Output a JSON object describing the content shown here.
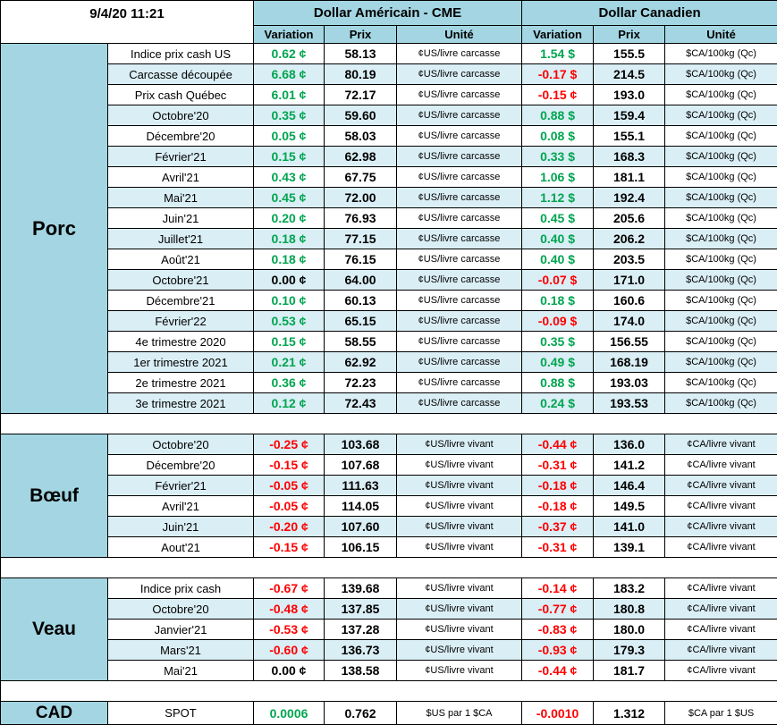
{
  "header": {
    "timestamp": "9/4/20 11:21",
    "us_group_title": "Dollar Américain - CME",
    "ca_group_title": "Dollar Canadien",
    "columns": [
      "Variation",
      "Prix",
      "Unité"
    ]
  },
  "colors": {
    "header_blue": "#a3d6e2",
    "alt_row_blue": "#daeef5",
    "positive_green": "#00a550",
    "negative_red": "#ff0000",
    "border_black": "#000000"
  },
  "sections": [
    {
      "name": "Porc",
      "us_unit": "¢US/livre carcasse",
      "ca_unit": "$CA/100kg (Qc)",
      "rows": [
        {
          "label": "Indice prix cash US",
          "us_var": "0.62 ¢",
          "us_prix": "58.13",
          "ca_var": "1.54 $",
          "ca_prix": "155.5"
        },
        {
          "label": "Carcasse découpée",
          "us_var": "6.68 ¢",
          "us_prix": "80.19",
          "ca_var": "-0.17 $",
          "ca_prix": "214.5"
        },
        {
          "label": "Prix cash Québec",
          "us_var": "6.01 ¢",
          "us_prix": "72.17",
          "ca_var": "-0.15 ¢",
          "ca_prix": "193.0"
        },
        {
          "label": "Octobre'20",
          "us_var": "0.35 ¢",
          "us_prix": "59.60",
          "ca_var": "0.88 $",
          "ca_prix": "159.4"
        },
        {
          "label": "Décembre'20",
          "us_var": "0.05 ¢",
          "us_prix": "58.03",
          "ca_var": "0.08 $",
          "ca_prix": "155.1"
        },
        {
          "label": "Février'21",
          "us_var": "0.15 ¢",
          "us_prix": "62.98",
          "ca_var": "0.33 $",
          "ca_prix": "168.3"
        },
        {
          "label": "Avril'21",
          "us_var": "0.43 ¢",
          "us_prix": "67.75",
          "ca_var": "1.06 $",
          "ca_prix": "181.1"
        },
        {
          "label": "Mai'21",
          "us_var": "0.45 ¢",
          "us_prix": "72.00",
          "ca_var": "1.12 $",
          "ca_prix": "192.4"
        },
        {
          "label": "Juin'21",
          "us_var": "0.20 ¢",
          "us_prix": "76.93",
          "ca_var": "0.45 $",
          "ca_prix": "205.6"
        },
        {
          "label": "Juillet'21",
          "us_var": "0.18 ¢",
          "us_prix": "77.15",
          "ca_var": "0.40 $",
          "ca_prix": "206.2"
        },
        {
          "label": "Août'21",
          "us_var": "0.18 ¢",
          "us_prix": "76.15",
          "ca_var": "0.40 $",
          "ca_prix": "203.5"
        },
        {
          "label": "Octobre'21",
          "us_var": "0.00 ¢",
          "us_prix": "64.00",
          "ca_var": "-0.07 $",
          "ca_prix": "171.0"
        },
        {
          "label": "Décembre'21",
          "us_var": "0.10 ¢",
          "us_prix": "60.13",
          "ca_var": "0.18 $",
          "ca_prix": "160.6"
        },
        {
          "label": "Février'22",
          "us_var": "0.53 ¢",
          "us_prix": "65.15",
          "ca_var": "-0.09 $",
          "ca_prix": "174.0"
        },
        {
          "label": "4e trimestre 2020",
          "us_var": "0.15 ¢",
          "us_prix": "58.55",
          "ca_var": "0.35 $",
          "ca_prix": "156.55"
        },
        {
          "label": "1er trimestre 2021",
          "us_var": "0.21 ¢",
          "us_prix": "62.92",
          "ca_var": "0.49 $",
          "ca_prix": "168.19"
        },
        {
          "label": "2e trimestre 2021",
          "us_var": "0.36 ¢",
          "us_prix": "72.23",
          "ca_var": "0.88 $",
          "ca_prix": "193.03"
        },
        {
          "label": "3e trimestre 2021",
          "us_var": "0.12 ¢",
          "us_prix": "72.43",
          "ca_var": "0.24 $",
          "ca_prix": "193.53"
        }
      ]
    },
    {
      "name": "Bœuf",
      "us_unit": "¢US/livre vivant",
      "ca_unit": "¢CA/livre vivant",
      "rows": [
        {
          "label": "Octobre'20",
          "us_var": "-0.25 ¢",
          "us_prix": "103.68",
          "ca_var": "-0.44 ¢",
          "ca_prix": "136.0"
        },
        {
          "label": "Décembre'20",
          "us_var": "-0.15 ¢",
          "us_prix": "107.68",
          "ca_var": "-0.31 ¢",
          "ca_prix": "141.2"
        },
        {
          "label": "Février'21",
          "us_var": "-0.05 ¢",
          "us_prix": "111.63",
          "ca_var": "-0.18 ¢",
          "ca_prix": "146.4"
        },
        {
          "label": "Avril'21",
          "us_var": "-0.05 ¢",
          "us_prix": "114.05",
          "ca_var": "-0.18 ¢",
          "ca_prix": "149.5"
        },
        {
          "label": "Juin'21",
          "us_var": "-0.20 ¢",
          "us_prix": "107.60",
          "ca_var": "-0.37 ¢",
          "ca_prix": "141.0"
        },
        {
          "label": "Aout'21",
          "us_var": "-0.15 ¢",
          "us_prix": "106.15",
          "ca_var": "-0.31 ¢",
          "ca_prix": "139.1"
        }
      ]
    },
    {
      "name": "Veau",
      "us_unit": "¢US/livre vivant",
      "ca_unit": "¢CA/livre vivant",
      "rows": [
        {
          "label": "Indice prix cash",
          "us_var": "-0.67 ¢",
          "us_prix": "139.68",
          "ca_var": "-0.14 ¢",
          "ca_prix": "183.2"
        },
        {
          "label": "Octobre'20",
          "us_var": "-0.48 ¢",
          "us_prix": "137.85",
          "ca_var": "-0.77 ¢",
          "ca_prix": "180.8"
        },
        {
          "label": "Janvier'21",
          "us_var": "-0.53 ¢",
          "us_prix": "137.28",
          "ca_var": "-0.83 ¢",
          "ca_prix": "180.0"
        },
        {
          "label": "Mars'21",
          "us_var": "-0.60 ¢",
          "us_prix": "136.73",
          "ca_var": "-0.93 ¢",
          "ca_prix": "179.3"
        },
        {
          "label": "Mai'21",
          "us_var": "0.00 ¢",
          "us_prix": "138.58",
          "ca_var": "-0.44 ¢",
          "ca_prix": "181.7"
        }
      ]
    },
    {
      "name": "CAD",
      "us_unit": "$US par 1 $CA",
      "ca_unit": "$CA par 1 $US",
      "rows": [
        {
          "label": "SPOT",
          "us_var": "0.0006",
          "us_prix": "0.762",
          "ca_var": "-0.0010",
          "ca_prix": "1.312"
        }
      ]
    }
  ]
}
